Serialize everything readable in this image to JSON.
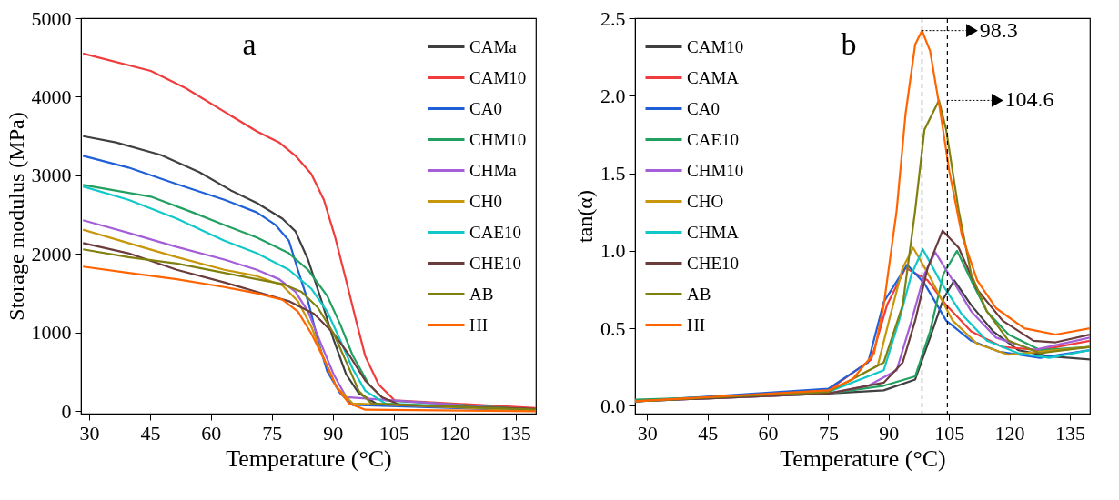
{
  "chart_data": [
    {
      "type": "line",
      "xlabel": "Temperature (°C)",
      "ylabel": "Storage modulus (MPa)",
      "xlim": [
        28,
        140
      ],
      "ylim": [
        -30,
        5000
      ],
      "xticks": [
        30,
        45,
        60,
        75,
        90,
        105,
        120,
        135
      ],
      "yticks": [
        0,
        1000,
        2000,
        3000,
        4000,
        5000
      ],
      "grid": false,
      "legend": "top right",
      "line_style": "solid",
      "marker": "none",
      "annotations": [
        "a"
      ],
      "series": [
        {
          "name": "CAMa",
          "color": "#404040",
          "x": [
            28.5,
            36.6,
            47.7,
            57.2,
            64.9,
            71.3,
            77.6,
            80.8,
            83.9,
            87,
            90.2,
            93.3,
            96.4,
            101.3,
            140
          ],
          "values": [
            3500,
            3420,
            3260,
            3040,
            2810,
            2650,
            2450,
            2290,
            1930,
            1440,
            910,
            470,
            230,
            80,
            20
          ]
        },
        {
          "name": "CAM10",
          "color": "#f03c3c",
          "x": [
            28.5,
            45.2,
            53.8,
            63.3,
            71.3,
            76.8,
            80.8,
            84.7,
            87.8,
            90.6,
            93.4,
            95.7,
            98,
            101.3,
            105.2,
            140
          ],
          "values": [
            4550,
            4330,
            4110,
            3810,
            3560,
            3420,
            3250,
            3020,
            2690,
            2210,
            1640,
            1160,
            700,
            340,
            140,
            40
          ]
        },
        {
          "name": "CA0",
          "color": "#1f5fd8",
          "x": [
            28.5,
            39.7,
            51.6,
            63.3,
            71.3,
            75.9,
            79.2,
            81.4,
            83.9,
            86.3,
            88.6,
            91.8,
            94.9,
            140
          ],
          "values": [
            3250,
            3100,
            2890,
            2690,
            2530,
            2370,
            2170,
            1800,
            1400,
            910,
            510,
            230,
            80,
            10
          ]
        },
        {
          "name": "CHM10",
          "color": "#22a060",
          "x": [
            28.5,
            45.2,
            55.5,
            63.3,
            71.3,
            79.2,
            83.9,
            88.6,
            91.8,
            94.9,
            98.9,
            102.9,
            140
          ],
          "values": [
            2880,
            2730,
            2530,
            2370,
            2210,
            2010,
            1800,
            1470,
            1110,
            710,
            340,
            140,
            20
          ]
        },
        {
          "name": "CHMa",
          "color": "#a45ed8",
          "x": [
            28.5,
            39.7,
            51.6,
            63.3,
            71.3,
            76.8,
            80.8,
            83.9,
            87,
            90.2,
            93.3,
            140
          ],
          "values": [
            2430,
            2270,
            2090,
            1930,
            1800,
            1680,
            1520,
            1270,
            870,
            470,
            180,
            10
          ]
        },
        {
          "name": "CH0",
          "color": "#c8960a",
          "x": [
            28.5,
            39.7,
            51.6,
            63.3,
            71.3,
            77.6,
            81.4,
            84.7,
            87.8,
            90.9,
            94.9,
            140
          ],
          "values": [
            2310,
            2140,
            1960,
            1800,
            1720,
            1600,
            1400,
            1080,
            670,
            310,
            100,
            10
          ]
        },
        {
          "name": "CAE10",
          "color": "#10c8c8",
          "x": [
            28.5,
            39.7,
            51.6,
            63.3,
            71.3,
            79.2,
            84.7,
            88.6,
            91.8,
            94.9,
            98,
            102.9,
            140
          ],
          "values": [
            2860,
            2690,
            2450,
            2170,
            2010,
            1800,
            1560,
            1270,
            910,
            540,
            260,
            100,
            20
          ]
        },
        {
          "name": "CHE10",
          "color": "#6b3c3c",
          "x": [
            28.5,
            39.7,
            51.6,
            63.3,
            71.3,
            79.2,
            85.4,
            90.2,
            94.1,
            98,
            102,
            106.6,
            140
          ],
          "values": [
            2140,
            2010,
            1800,
            1640,
            1520,
            1400,
            1240,
            990,
            710,
            390,
            180,
            80,
            30
          ]
        },
        {
          "name": "AB",
          "color": "#808010",
          "x": [
            28.5,
            39.7,
            51.6,
            63.3,
            71.3,
            77.6,
            82.3,
            86.3,
            90.2,
            93.3,
            96.4,
            99.5,
            140
          ],
          "values": [
            2060,
            1960,
            1880,
            1760,
            1680,
            1620,
            1520,
            1320,
            990,
            630,
            260,
            100,
            20
          ]
        },
        {
          "name": "HI",
          "color": "#ff6400",
          "x": [
            28.5,
            39.7,
            51.6,
            63.3,
            71.3,
            77.6,
            81.4,
            84.7,
            87.8,
            90.9,
            94,
            98,
            140
          ],
          "values": [
            1840,
            1760,
            1680,
            1580,
            1500,
            1420,
            1270,
            990,
            670,
            310,
            100,
            20,
            0
          ]
        }
      ]
    },
    {
      "type": "line",
      "xlabel": "Temperature (°C)",
      "ylabel": "tan(α)",
      "xlim": [
        27,
        140
      ],
      "ylim": [
        -0.05,
        2.5
      ],
      "xticks": [
        30,
        45,
        60,
        75,
        90,
        105,
        120,
        135
      ],
      "yticks": [
        {
          "value": 0,
          "label": "0.0"
        },
        0.5,
        {
          "value": 1,
          "label": "1.0"
        },
        1.5,
        {
          "value": 2,
          "label": "2.0"
        },
        2.5
      ],
      "grid": false,
      "legend": "top left",
      "line_style": "solid",
      "marker": "none",
      "annotations": [
        "b",
        {
          "text": "98.3",
          "x": 98.3,
          "y": 2.42
        },
        {
          "text": "104.6",
          "x": 104.6,
          "y": 1.97
        }
      ],
      "ref_lines": [
        {
          "axis": "x",
          "value": 98.3,
          "color": "#000000",
          "line_style": "dashed"
        },
        {
          "axis": "x",
          "value": 104.6,
          "color": "#000000",
          "line_style": "dashed"
        }
      ],
      "series": [
        {
          "name": "CAM10",
          "color": "#404040",
          "x": [
            27,
            75,
            88.8,
            96.6,
            100.3,
            103.6,
            106.3,
            110.5,
            116,
            122.2,
            129.9,
            140
          ],
          "values": [
            0.03,
            0.08,
            0.1,
            0.17,
            0.44,
            0.69,
            0.81,
            0.65,
            0.48,
            0.36,
            0.32,
            0.3
          ]
        },
        {
          "name": "CAMA",
          "color": "#f03c3c",
          "x": [
            27,
            75,
            85.7,
            89.6,
            94.2,
            99.7,
            104.3,
            110.5,
            118.3,
            127.6,
            140
          ],
          "values": [
            0.03,
            0.1,
            0.3,
            0.65,
            0.89,
            0.81,
            0.65,
            0.48,
            0.38,
            0.36,
            0.42
          ]
        },
        {
          "name": "CA0",
          "color": "#1f5fd8",
          "x": [
            27,
            75,
            84.9,
            88.8,
            94.6,
            98.9,
            104.3,
            110.5,
            117.4,
            127.6,
            140
          ],
          "values": [
            0.03,
            0.11,
            0.28,
            0.67,
            0.91,
            0.79,
            0.55,
            0.42,
            0.35,
            0.31,
            0.36
          ]
        },
        {
          "name": "CAE10",
          "color": "#22a060",
          "x": [
            27,
            75,
            88.8,
            96.6,
            100.3,
            103.6,
            107,
            110.5,
            114.4,
            119.8,
            127.6,
            140
          ],
          "values": [
            0.04,
            0.08,
            0.13,
            0.19,
            0.48,
            0.85,
            1.0,
            0.81,
            0.61,
            0.46,
            0.36,
            0.38
          ]
        },
        {
          "name": "CHM10",
          "color": "#a45ed8",
          "x": [
            27,
            75,
            85,
            92,
            95.7,
            98.9,
            101.6,
            105.9,
            110.5,
            116.7,
            126,
            140
          ],
          "values": [
            0.03,
            0.08,
            0.13,
            0.23,
            0.55,
            0.85,
            0.99,
            0.81,
            0.61,
            0.44,
            0.36,
            0.44
          ]
        },
        {
          "name": "CHO",
          "color": "#c8960a",
          "x": [
            27,
            75,
            87.3,
            90.4,
            93.5,
            96.1,
            100.3,
            105.9,
            112,
            119.8,
            140
          ],
          "values": [
            0.03,
            0.09,
            0.26,
            0.58,
            0.89,
            1.02,
            0.83,
            0.55,
            0.4,
            0.33,
            0.38
          ]
        },
        {
          "name": "CHMA",
          "color": "#10c8c8",
          "x": [
            27,
            75,
            88.8,
            92.6,
            95.7,
            98.5,
            102.7,
            108.2,
            114.4,
            122.2,
            129.9,
            140
          ],
          "values": [
            0.03,
            0.09,
            0.23,
            0.55,
            0.85,
            1.01,
            0.81,
            0.59,
            0.42,
            0.34,
            0.31,
            0.36
          ]
        },
        {
          "name": "CHE10",
          "color": "#6b3c3c",
          "x": [
            27,
            75,
            88.8,
            93.5,
            96.6,
            99.7,
            103.4,
            107.4,
            112,
            118.3,
            126,
            131.5,
            140
          ],
          "values": [
            0.03,
            0.08,
            0.15,
            0.28,
            0.55,
            0.89,
            1.13,
            1.02,
            0.75,
            0.55,
            0.42,
            0.41,
            0.46
          ]
        },
        {
          "name": "AB",
          "color": "#808010",
          "x": [
            27,
            75,
            88.8,
            93.5,
            96.6,
            98.9,
            102.5,
            104.3,
            107.4,
            110.5,
            114.4,
            119.8,
            127.6,
            140
          ],
          "values": [
            0.03,
            0.09,
            0.28,
            0.65,
            1.26,
            1.78,
            1.97,
            1.78,
            1.26,
            0.85,
            0.61,
            0.42,
            0.34,
            0.38
          ]
        },
        {
          "name": "HI",
          "color": "#ff6400",
          "x": [
            27,
            75,
            81,
            86.4,
            88.8,
            92,
            94.2,
            96.6,
            98.3,
            100.3,
            102.7,
            105.1,
            108.2,
            112,
            116.7,
            123.7,
            131.5,
            140
          ],
          "values": [
            0.03,
            0.1,
            0.17,
            0.34,
            0.65,
            1.26,
            1.88,
            2.33,
            2.42,
            2.29,
            1.92,
            1.51,
            1.1,
            0.81,
            0.63,
            0.5,
            0.46,
            0.5
          ]
        }
      ]
    }
  ]
}
